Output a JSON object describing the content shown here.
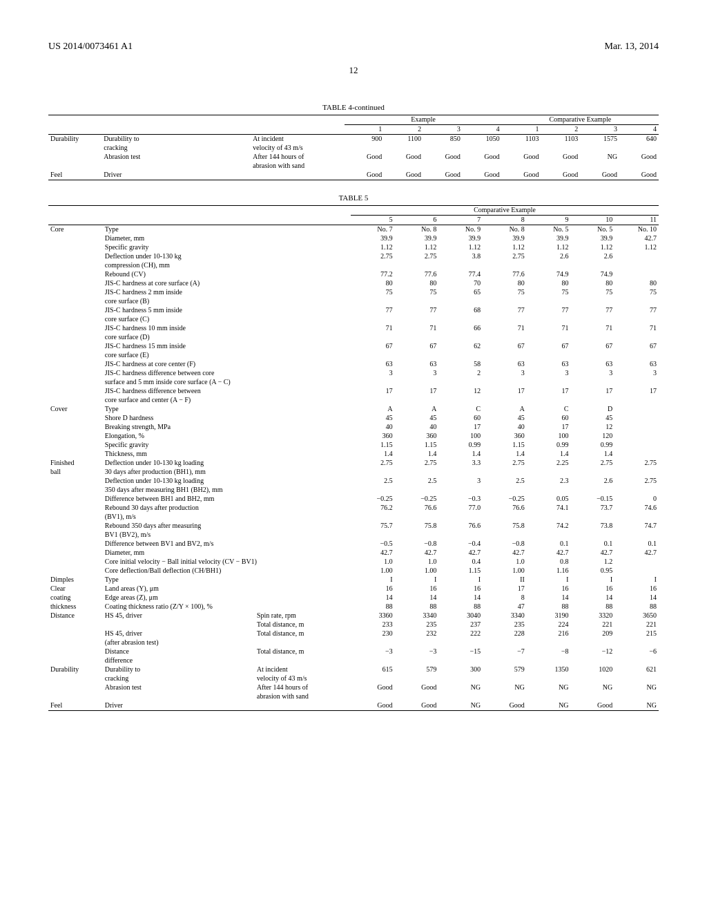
{
  "header": {
    "left": "US 2014/0073461 A1",
    "right": "Mar. 13, 2014",
    "page": "12"
  },
  "table4": {
    "title": "TABLE 4-continued",
    "group_headers": [
      "Example",
      "Comparative Example"
    ],
    "col_headers": [
      "1",
      "2",
      "3",
      "4",
      "1",
      "2",
      "3",
      "4"
    ],
    "rows": [
      {
        "group": "Durability",
        "label": "Durability to",
        "sub": "At incident",
        "vals": [
          "900",
          "1100",
          "850",
          "1050",
          "1103",
          "1103",
          "1575",
          "640"
        ]
      },
      {
        "group": "",
        "label": "cracking",
        "sub": "velocity of 43 m/s",
        "vals": [
          "",
          "",
          "",
          "",
          "",
          "",
          "",
          ""
        ]
      },
      {
        "group": "",
        "label": "Abrasion test",
        "sub": "After 144 hours of",
        "vals": [
          "Good",
          "Good",
          "Good",
          "Good",
          "Good",
          "Good",
          "NG",
          "Good"
        ]
      },
      {
        "group": "",
        "label": "",
        "sub": "abrasion with sand",
        "vals": [
          "",
          "",
          "",
          "",
          "",
          "",
          "",
          ""
        ]
      },
      {
        "group": "Feel",
        "label": "Driver",
        "sub": "",
        "vals": [
          "Good",
          "Good",
          "Good",
          "Good",
          "Good",
          "Good",
          "Good",
          "Good"
        ]
      }
    ]
  },
  "table5": {
    "title": "TABLE 5",
    "group_header": "Comparative Example",
    "col_headers": [
      "5",
      "6",
      "7",
      "8",
      "9",
      "10",
      "11"
    ],
    "rows": [
      {
        "group": "Core",
        "label": "Type",
        "sub": "",
        "vals": [
          "No. 7",
          "No. 8",
          "No. 9",
          "No. 8",
          "No. 5",
          "No. 5",
          "No. 10"
        ]
      },
      {
        "group": "",
        "label": "Diameter, mm",
        "sub": "",
        "vals": [
          "39.9",
          "39.9",
          "39.9",
          "39.9",
          "39.9",
          "39.9",
          "42.7"
        ]
      },
      {
        "group": "",
        "label": "Specific gravity",
        "sub": "",
        "vals": [
          "1.12",
          "1.12",
          "1.12",
          "1.12",
          "1.12",
          "1.12",
          "1.12"
        ]
      },
      {
        "group": "",
        "label": "Deflection under 10-130 kg",
        "sub": "",
        "vals": [
          "2.75",
          "2.75",
          "3.8",
          "2.75",
          "2.6",
          "2.6",
          ""
        ]
      },
      {
        "group": "",
        "label": "compression (CH), mm",
        "sub": "",
        "vals": [
          "",
          "",
          "",
          "",
          "",
          "",
          ""
        ]
      },
      {
        "group": "",
        "label": "Rebound (CV)",
        "sub": "",
        "vals": [
          "77.2",
          "77.6",
          "77.4",
          "77.6",
          "74.9",
          "74.9",
          ""
        ]
      },
      {
        "group": "",
        "label": "JIS-C hardness at core surface (A)",
        "sub": "",
        "vals": [
          "80",
          "80",
          "70",
          "80",
          "80",
          "80",
          "80"
        ]
      },
      {
        "group": "",
        "label": "JIS-C hardness 2 mm inside",
        "sub": "",
        "vals": [
          "75",
          "75",
          "65",
          "75",
          "75",
          "75",
          "75"
        ]
      },
      {
        "group": "",
        "label": "core surface (B)",
        "sub": "",
        "vals": [
          "",
          "",
          "",
          "",
          "",
          "",
          ""
        ]
      },
      {
        "group": "",
        "label": "JIS-C hardness 5 mm inside",
        "sub": "",
        "vals": [
          "77",
          "77",
          "68",
          "77",
          "77",
          "77",
          "77"
        ]
      },
      {
        "group": "",
        "label": "core surface (C)",
        "sub": "",
        "vals": [
          "",
          "",
          "",
          "",
          "",
          "",
          ""
        ]
      },
      {
        "group": "",
        "label": "JIS-C hardness 10 mm inside",
        "sub": "",
        "vals": [
          "71",
          "71",
          "66",
          "71",
          "71",
          "71",
          "71"
        ]
      },
      {
        "group": "",
        "label": "core surface (D)",
        "sub": "",
        "vals": [
          "",
          "",
          "",
          "",
          "",
          "",
          ""
        ]
      },
      {
        "group": "",
        "label": "JIS-C hardness 15 mm inside",
        "sub": "",
        "vals": [
          "67",
          "67",
          "62",
          "67",
          "67",
          "67",
          "67"
        ]
      },
      {
        "group": "",
        "label": "core surface (E)",
        "sub": "",
        "vals": [
          "",
          "",
          "",
          "",
          "",
          "",
          ""
        ]
      },
      {
        "group": "",
        "label": "JIS-C hardness at core center (F)",
        "sub": "",
        "vals": [
          "63",
          "63",
          "58",
          "63",
          "63",
          "63",
          "63"
        ]
      },
      {
        "group": "",
        "label": "JIS-C hardness difference between core",
        "sub": "",
        "vals": [
          "3",
          "3",
          "2",
          "3",
          "3",
          "3",
          "3"
        ]
      },
      {
        "group": "",
        "label": "surface and 5 mm inside core surface (A − C)",
        "sub": "",
        "vals": [
          "",
          "",
          "",
          "",
          "",
          "",
          ""
        ]
      },
      {
        "group": "",
        "label": "JIS-C hardness difference between",
        "sub": "",
        "vals": [
          "17",
          "17",
          "12",
          "17",
          "17",
          "17",
          "17"
        ]
      },
      {
        "group": "",
        "label": "core surface and center (A − F)",
        "sub": "",
        "vals": [
          "",
          "",
          "",
          "",
          "",
          "",
          ""
        ]
      },
      {
        "group": "Cover",
        "label": "Type",
        "sub": "",
        "vals": [
          "A",
          "A",
          "C",
          "A",
          "C",
          "D",
          ""
        ]
      },
      {
        "group": "",
        "label": "Shore D hardness",
        "sub": "",
        "vals": [
          "45",
          "45",
          "60",
          "45",
          "60",
          "45",
          ""
        ]
      },
      {
        "group": "",
        "label": "Breaking strength, MPa",
        "sub": "",
        "vals": [
          "40",
          "40",
          "17",
          "40",
          "17",
          "12",
          ""
        ]
      },
      {
        "group": "",
        "label": "Elongation, %",
        "sub": "",
        "vals": [
          "360",
          "360",
          "100",
          "360",
          "100",
          "120",
          ""
        ]
      },
      {
        "group": "",
        "label": "Specific gravity",
        "sub": "",
        "vals": [
          "1.15",
          "1.15",
          "0.99",
          "1.15",
          "0.99",
          "0.99",
          ""
        ]
      },
      {
        "group": "",
        "label": "Thickness, mm",
        "sub": "",
        "vals": [
          "1.4",
          "1.4",
          "1.4",
          "1.4",
          "1.4",
          "1.4",
          ""
        ]
      },
      {
        "group": "Finished",
        "label": "Deflection under 10-130 kg loading",
        "sub": "",
        "vals": [
          "2.75",
          "2.75",
          "3.3",
          "2.75",
          "2.25",
          "2.75",
          "2.75"
        ]
      },
      {
        "group": "ball",
        "label": "30 days after production (BH1), mm",
        "sub": "",
        "vals": [
          "",
          "",
          "",
          "",
          "",
          "",
          ""
        ]
      },
      {
        "group": "",
        "label": "Deflection under 10-130 kg loading",
        "sub": "",
        "vals": [
          "2.5",
          "2.5",
          "3",
          "2.5",
          "2.3",
          "2.6",
          "2.75"
        ]
      },
      {
        "group": "",
        "label": "350 days after measuring BH1 (BH2), mm",
        "sub": "",
        "vals": [
          "",
          "",
          "",
          "",
          "",
          "",
          ""
        ]
      },
      {
        "group": "",
        "label": "Difference between BH1 and BH2, mm",
        "sub": "",
        "vals": [
          "−0.25",
          "−0.25",
          "−0.3",
          "−0.25",
          "0.05",
          "−0.15",
          "0"
        ]
      },
      {
        "group": "",
        "label": "Rebound 30 days after production",
        "sub": "",
        "vals": [
          "76.2",
          "76.6",
          "77.0",
          "76.6",
          "74.1",
          "73.7",
          "74.6"
        ]
      },
      {
        "group": "",
        "label": "(BV1), m/s",
        "sub": "",
        "vals": [
          "",
          "",
          "",
          "",
          "",
          "",
          ""
        ]
      },
      {
        "group": "",
        "label": "Rebound 350 days after measuring",
        "sub": "",
        "vals": [
          "75.7",
          "75.8",
          "76.6",
          "75.8",
          "74.2",
          "73.8",
          "74.7"
        ]
      },
      {
        "group": "",
        "label": "BV1 (BV2), m/s",
        "sub": "",
        "vals": [
          "",
          "",
          "",
          "",
          "",
          "",
          ""
        ]
      },
      {
        "group": "",
        "label": "Difference between BV1 and BV2, m/s",
        "sub": "",
        "vals": [
          "−0.5",
          "−0.8",
          "−0.4",
          "−0.8",
          "0.1",
          "0.1",
          "0.1"
        ]
      },
      {
        "group": "",
        "label": "Diameter, mm",
        "sub": "",
        "vals": [
          "42.7",
          "42.7",
          "42.7",
          "42.7",
          "42.7",
          "42.7",
          "42.7"
        ]
      },
      {
        "group": "",
        "label2": "Core initial velocity − Ball initial velocity (CV − BV1)",
        "sub": "",
        "vals": [
          "1.0",
          "1.0",
          "0.4",
          "1.0",
          "0.8",
          "1.2",
          ""
        ]
      },
      {
        "group": "",
        "label2": "Core deflection/Ball deflection (CH/BH1)",
        "sub": "",
        "vals": [
          "1.00",
          "1.00",
          "1.15",
          "1.00",
          "1.16",
          "0.95",
          ""
        ]
      },
      {
        "group": "Dimples",
        "label": "Type",
        "sub": "",
        "vals": [
          "I",
          "I",
          "I",
          "II",
          "I",
          "I",
          "I"
        ]
      },
      {
        "group": "Clear",
        "label": "Land areas (Y), μm",
        "sub": "",
        "vals": [
          "16",
          "16",
          "16",
          "17",
          "16",
          "16",
          "16"
        ]
      },
      {
        "group": "coating",
        "label": "Edge areas (Z), μm",
        "sub": "",
        "vals": [
          "14",
          "14",
          "14",
          "8",
          "14",
          "14",
          "14"
        ]
      },
      {
        "group": "thickness",
        "label": "Coating thickness ratio (Z/Y × 100), %",
        "sub": "",
        "vals": [
          "88",
          "88",
          "88",
          "47",
          "88",
          "88",
          "88"
        ]
      },
      {
        "group": "Distance",
        "label": "HS 45, driver",
        "sub": "Spin rate, rpm",
        "vals": [
          "3360",
          "3340",
          "3040",
          "3340",
          "3190",
          "3320",
          "3650"
        ]
      },
      {
        "group": "",
        "label": "",
        "sub": "Total distance, m",
        "vals": [
          "233",
          "235",
          "237",
          "235",
          "224",
          "221",
          "221"
        ]
      },
      {
        "group": "",
        "label": "HS 45, driver",
        "sub": "Total distance, m",
        "vals": [
          "230",
          "232",
          "222",
          "228",
          "216",
          "209",
          "215"
        ]
      },
      {
        "group": "",
        "label": "(after abrasion test)",
        "sub": "",
        "vals": [
          "",
          "",
          "",
          "",
          "",
          "",
          ""
        ]
      },
      {
        "group": "",
        "label": "Distance",
        "sub": "Total distance, m",
        "vals": [
          "−3",
          "−3",
          "−15",
          "−7",
          "−8",
          "−12",
          "−6"
        ]
      },
      {
        "group": "",
        "label": "difference",
        "sub": "",
        "vals": [
          "",
          "",
          "",
          "",
          "",
          "",
          ""
        ]
      },
      {
        "group": "Durability",
        "label": "Durability to",
        "sub": "At incident",
        "vals": [
          "615",
          "579",
          "300",
          "579",
          "1350",
          "1020",
          "621"
        ]
      },
      {
        "group": "",
        "label": "cracking",
        "sub": "velocity of 43 m/s",
        "vals": [
          "",
          "",
          "",
          "",
          "",
          "",
          ""
        ]
      },
      {
        "group": "",
        "label": "Abrasion test",
        "sub": "After 144 hours of",
        "vals": [
          "Good",
          "Good",
          "NG",
          "NG",
          "NG",
          "NG",
          "NG"
        ]
      },
      {
        "group": "",
        "label": "",
        "sub": "abrasion with sand",
        "vals": [
          "",
          "",
          "",
          "",
          "",
          "",
          ""
        ]
      },
      {
        "group": "Feel",
        "label": "Driver",
        "sub": "",
        "vals": [
          "Good",
          "Good",
          "NG",
          "Good",
          "NG",
          "Good",
          "NG"
        ]
      }
    ]
  }
}
